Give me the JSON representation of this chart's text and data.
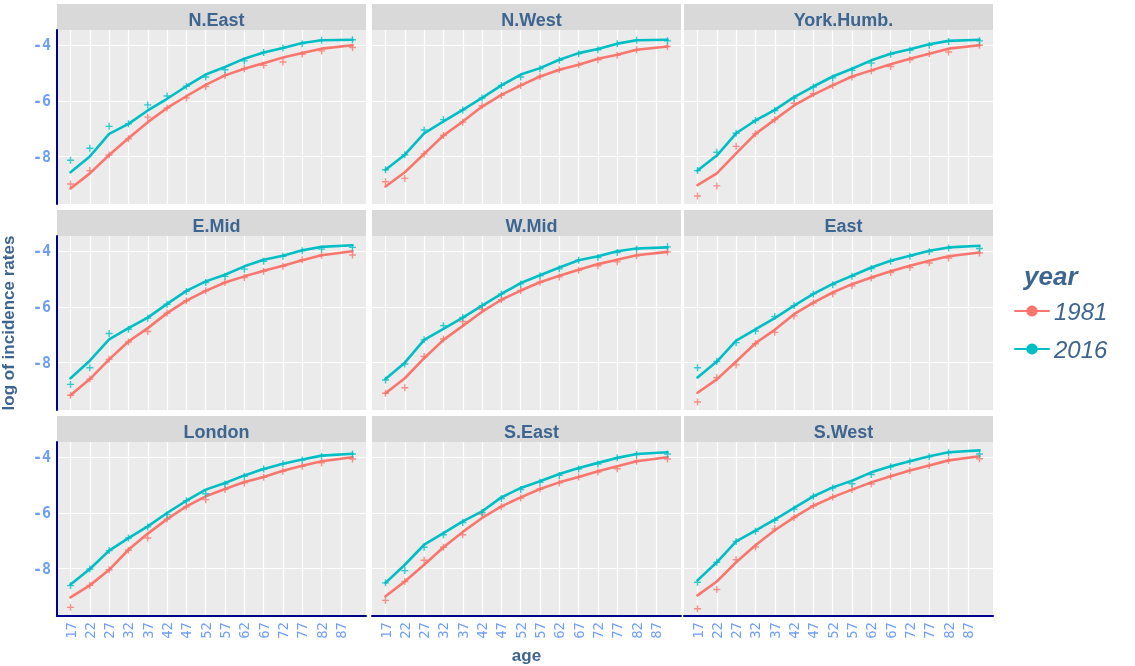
{
  "chart_data": [
    {
      "type": "line",
      "title": "N.East",
      "x": [
        17,
        22,
        27,
        32,
        37,
        42,
        47,
        52,
        57,
        62,
        67,
        72,
        77,
        82,
        90
      ],
      "xlim": [
        13.5,
        93.5
      ],
      "xticks": [
        17,
        22,
        27,
        32,
        37,
        42,
        47,
        52,
        57,
        62,
        67,
        72,
        77,
        82,
        87
      ],
      "ylim": [
        -9.7,
        -3.45
      ],
      "yticks": [
        -8,
        -6,
        -4
      ],
      "grid": true,
      "tick_labels": "y",
      "series": [
        {
          "color": "#f8766d",
          "marker": "none",
          "values": [
            -9.14,
            -8.6,
            -7.94,
            -7.34,
            -6.76,
            -6.25,
            -5.83,
            -5.42,
            -5.08,
            -4.84,
            -4.64,
            -4.44,
            -4.28,
            -4.12,
            -4.0
          ]
        },
        {
          "color": "#00bfc4",
          "marker": "none",
          "values": [
            -8.56,
            -7.99,
            -7.18,
            -6.82,
            -6.34,
            -5.92,
            -5.47,
            -5.05,
            -4.78,
            -4.48,
            -4.26,
            -4.1,
            -3.92,
            -3.82,
            -3.8
          ]
        },
        {
          "type": "scatter",
          "color": "#f8766d",
          "marker": "cross",
          "values": [
            -8.98,
            -8.5,
            -7.94,
            -7.36,
            -6.58,
            -6.25,
            -5.89,
            -5.48,
            -5.08,
            -4.84,
            -4.72,
            -4.6,
            -4.32,
            -4.2,
            -4.08
          ]
        },
        {
          "type": "scatter",
          "color": "#00bfc4",
          "marker": "cross",
          "values": [
            -8.13,
            -7.7,
            -6.91,
            -6.82,
            -6.14,
            -5.82,
            -5.47,
            -5.14,
            -4.88,
            -4.56,
            -4.26,
            -4.1,
            -3.94,
            -3.82,
            -3.8
          ]
        }
      ]
    },
    {
      "type": "line",
      "title": "N.West",
      "x": [
        17,
        22,
        27,
        32,
        37,
        42,
        47,
        52,
        57,
        62,
        67,
        72,
        77,
        82,
        90
      ],
      "xlim": [
        13.5,
        93.5
      ],
      "xticks": [
        17,
        22,
        27,
        32,
        37,
        42,
        47,
        52,
        57,
        62,
        67,
        72,
        77,
        82,
        87
      ],
      "ylim": [
        -9.7,
        -3.45
      ],
      "yticks": [
        -8,
        -6,
        -4
      ],
      "grid": true,
      "tick_labels": false,
      "series": [
        {
          "color": "#f8766d",
          "marker": "none",
          "values": [
            -9.07,
            -8.56,
            -7.9,
            -7.24,
            -6.74,
            -6.2,
            -5.78,
            -5.44,
            -5.12,
            -4.88,
            -4.7,
            -4.48,
            -4.34,
            -4.16,
            -4.04
          ]
        },
        {
          "color": "#00bfc4",
          "marker": "none",
          "values": [
            -8.47,
            -7.93,
            -7.16,
            -6.73,
            -6.32,
            -5.89,
            -5.44,
            -5.05,
            -4.82,
            -4.52,
            -4.28,
            -4.13,
            -3.94,
            -3.82,
            -3.8
          ]
        },
        {
          "type": "scatter",
          "color": "#f8766d",
          "marker": "cross",
          "values": [
            -8.9,
            -8.78,
            -7.9,
            -7.24,
            -6.76,
            -6.17,
            -5.8,
            -5.44,
            -5.12,
            -4.88,
            -4.7,
            -4.52,
            -4.36,
            -4.16,
            -4.04
          ]
        },
        {
          "type": "scatter",
          "color": "#00bfc4",
          "marker": "cross",
          "values": [
            -8.47,
            -7.93,
            -7.04,
            -6.67,
            -6.32,
            -5.89,
            -5.44,
            -5.14,
            -4.84,
            -4.54,
            -4.3,
            -4.16,
            -3.94,
            -3.82,
            -3.84
          ]
        }
      ]
    },
    {
      "type": "line",
      "title": "York.Humb.",
      "x": [
        17,
        22,
        27,
        32,
        37,
        42,
        47,
        52,
        57,
        62,
        67,
        72,
        77,
        82,
        90
      ],
      "xlim": [
        13.5,
        93.5
      ],
      "xticks": [
        17,
        22,
        27,
        32,
        37,
        42,
        47,
        52,
        57,
        62,
        67,
        72,
        77,
        82,
        87
      ],
      "ylim": [
        -9.7,
        -3.45
      ],
      "yticks": [
        -8,
        -6,
        -4
      ],
      "grid": true,
      "tick_labels": false,
      "series": [
        {
          "color": "#f8766d",
          "marker": "none",
          "values": [
            -9.02,
            -8.6,
            -7.88,
            -7.18,
            -6.67,
            -6.16,
            -5.77,
            -5.44,
            -5.12,
            -4.9,
            -4.68,
            -4.48,
            -4.3,
            -4.12,
            -4.0
          ]
        },
        {
          "color": "#00bfc4",
          "marker": "none",
          "values": [
            -8.5,
            -7.96,
            -7.16,
            -6.7,
            -6.32,
            -5.86,
            -5.48,
            -5.12,
            -4.84,
            -4.54,
            -4.3,
            -4.14,
            -3.96,
            -3.84,
            -3.8
          ]
        },
        {
          "type": "scatter",
          "color": "#f8766d",
          "marker": "cross",
          "values": [
            -9.41,
            -9.05,
            -7.63,
            -7.18,
            -6.67,
            -6.08,
            -5.74,
            -5.44,
            -5.14,
            -4.92,
            -4.76,
            -4.52,
            -4.3,
            -4.24,
            -4.0
          ]
        },
        {
          "type": "scatter",
          "color": "#00bfc4",
          "marker": "cross",
          "values": [
            -8.5,
            -7.84,
            -7.16,
            -6.7,
            -6.34,
            -5.9,
            -5.5,
            -5.17,
            -4.9,
            -4.64,
            -4.32,
            -4.18,
            -4.0,
            -3.86,
            -3.84
          ]
        }
      ]
    },
    {
      "type": "line",
      "title": "E.Mid",
      "ylabel": "log of incidence rates",
      "x": [
        17,
        22,
        27,
        32,
        37,
        42,
        47,
        52,
        57,
        62,
        67,
        72,
        77,
        82,
        90
      ],
      "xlim": [
        13.5,
        93.5
      ],
      "xticks": [
        17,
        22,
        27,
        32,
        37,
        42,
        47,
        52,
        57,
        62,
        67,
        72,
        77,
        82,
        87
      ],
      "ylim": [
        -9.7,
        -3.45
      ],
      "yticks": [
        -8,
        -6,
        -4
      ],
      "grid": true,
      "tick_labels": "y",
      "series": [
        {
          "color": "#f8766d",
          "marker": "none",
          "values": [
            -9.17,
            -8.59,
            -7.88,
            -7.24,
            -6.76,
            -6.22,
            -5.77,
            -5.42,
            -5.12,
            -4.9,
            -4.7,
            -4.52,
            -4.32,
            -4.14,
            -4.0
          ]
        },
        {
          "color": "#00bfc4",
          "marker": "none",
          "values": [
            -8.56,
            -7.93,
            -7.16,
            -6.76,
            -6.38,
            -5.89,
            -5.42,
            -5.08,
            -4.84,
            -4.54,
            -4.3,
            -4.16,
            -3.96,
            -3.84,
            -3.78
          ]
        },
        {
          "type": "scatter",
          "color": "#f8766d",
          "marker": "cross",
          "values": [
            -9.17,
            -8.59,
            -7.88,
            -7.26,
            -6.88,
            -6.22,
            -5.78,
            -5.42,
            -5.12,
            -4.94,
            -4.72,
            -4.54,
            -4.3,
            -4.14,
            -4.13
          ]
        },
        {
          "type": "scatter",
          "color": "#00bfc4",
          "marker": "cross",
          "values": [
            -8.78,
            -8.18,
            -6.95,
            -6.8,
            -6.4,
            -5.9,
            -5.44,
            -5.12,
            -4.9,
            -4.64,
            -4.36,
            -4.18,
            -3.98,
            -3.92,
            -3.86
          ]
        }
      ]
    },
    {
      "type": "line",
      "title": "W.Mid",
      "x": [
        17,
        22,
        27,
        32,
        37,
        42,
        47,
        52,
        57,
        62,
        67,
        72,
        77,
        82,
        90
      ],
      "xlim": [
        13.5,
        93.5
      ],
      "xticks": [
        17,
        22,
        27,
        32,
        37,
        42,
        47,
        52,
        57,
        62,
        67,
        72,
        77,
        82,
        87
      ],
      "ylim": [
        -9.7,
        -3.45
      ],
      "yticks": [
        -8,
        -6,
        -4
      ],
      "grid": true,
      "tick_labels": false,
      "series": [
        {
          "color": "#f8766d",
          "marker": "none",
          "values": [
            -9.1,
            -8.56,
            -7.84,
            -7.18,
            -6.68,
            -6.17,
            -5.74,
            -5.41,
            -5.11,
            -4.88,
            -4.66,
            -4.46,
            -4.3,
            -4.14,
            -4.02
          ]
        },
        {
          "color": "#00bfc4",
          "marker": "none",
          "values": [
            -8.59,
            -8.0,
            -7.18,
            -6.79,
            -6.38,
            -5.95,
            -5.53,
            -5.14,
            -4.86,
            -4.58,
            -4.32,
            -4.18,
            -4.0,
            -3.9,
            -3.86
          ]
        },
        {
          "type": "scatter",
          "color": "#f8766d",
          "marker": "cross",
          "values": [
            -9.1,
            -8.9,
            -7.78,
            -7.15,
            -6.52,
            -6.08,
            -5.74,
            -5.41,
            -5.11,
            -4.92,
            -4.68,
            -4.52,
            -4.38,
            -4.16,
            -4.02
          ]
        },
        {
          "type": "scatter",
          "color": "#00bfc4",
          "marker": "cross",
          "values": [
            -8.62,
            -8.05,
            -7.18,
            -6.67,
            -6.38,
            -5.95,
            -5.53,
            -5.17,
            -4.88,
            -4.63,
            -4.32,
            -4.22,
            -4.04,
            -3.92,
            -3.84
          ]
        }
      ]
    },
    {
      "type": "line",
      "title": "East",
      "legend": "right",
      "legend_title": "year",
      "x": [
        17,
        22,
        27,
        32,
        37,
        42,
        47,
        52,
        57,
        62,
        67,
        72,
        77,
        82,
        90
      ],
      "xlim": [
        13.5,
        93.5
      ],
      "xticks": [
        17,
        22,
        27,
        32,
        37,
        42,
        47,
        52,
        57,
        62,
        67,
        72,
        77,
        82,
        87
      ],
      "ylim": [
        -9.7,
        -3.45
      ],
      "yticks": [
        -8,
        -6,
        -4
      ],
      "grid": true,
      "tick_labels": false,
      "series": [
        {
          "name": "1981",
          "color": "#f8766d",
          "marker": "none",
          "values": [
            -9.08,
            -8.6,
            -7.96,
            -7.3,
            -6.82,
            -6.26,
            -5.84,
            -5.48,
            -5.18,
            -4.94,
            -4.72,
            -4.52,
            -4.34,
            -4.18,
            -4.04
          ]
        },
        {
          "name": "2016",
          "color": "#00bfc4",
          "marker": "none",
          "values": [
            -8.53,
            -7.96,
            -7.21,
            -6.8,
            -6.4,
            -5.95,
            -5.53,
            -5.17,
            -4.88,
            -4.58,
            -4.34,
            -4.16,
            -3.98,
            -3.86,
            -3.8
          ]
        },
        {
          "type": "scatter",
          "color": "#f8766d",
          "marker": "cross",
          "values": [
            -9.41,
            -8.54,
            -8.08,
            -7.32,
            -6.91,
            -6.32,
            -5.86,
            -5.53,
            -5.24,
            -4.96,
            -4.76,
            -4.58,
            -4.42,
            -4.24,
            -4.06
          ]
        },
        {
          "type": "scatter",
          "color": "#00bfc4",
          "marker": "cross",
          "values": [
            -8.18,
            -7.96,
            -7.28,
            -6.86,
            -6.34,
            -5.95,
            -5.53,
            -5.2,
            -4.9,
            -4.62,
            -4.36,
            -4.18,
            -4.02,
            -3.88,
            -3.9
          ]
        }
      ]
    },
    {
      "type": "line",
      "title": "London",
      "x": [
        17,
        22,
        27,
        32,
        37,
        42,
        47,
        52,
        57,
        62,
        67,
        72,
        77,
        82,
        90
      ],
      "xlim": [
        13.5,
        93.5
      ],
      "xticks": [
        17,
        22,
        27,
        32,
        37,
        42,
        47,
        52,
        57,
        62,
        67,
        72,
        77,
        82,
        87
      ],
      "ylim": [
        -9.7,
        -3.45
      ],
      "yticks": [
        -8,
        -6,
        -4
      ],
      "grid": true,
      "series": [
        {
          "color": "#f8766d",
          "marker": "none",
          "values": [
            -9.03,
            -8.6,
            -8.04,
            -7.32,
            -6.74,
            -6.22,
            -5.76,
            -5.4,
            -5.14,
            -4.89,
            -4.71,
            -4.48,
            -4.3,
            -4.14,
            -4.0
          ]
        },
        {
          "color": "#00bfc4",
          "marker": "none",
          "values": [
            -8.57,
            -8.01,
            -7.35,
            -6.9,
            -6.48,
            -6.0,
            -5.56,
            -5.16,
            -4.92,
            -4.65,
            -4.42,
            -4.23,
            -4.08,
            -3.94,
            -3.87
          ]
        },
        {
          "type": "scatter",
          "color": "#f8766d",
          "marker": "cross",
          "values": [
            -9.39,
            -8.6,
            -8.04,
            -7.34,
            -6.9,
            -6.22,
            -5.78,
            -5.52,
            -5.16,
            -4.92,
            -4.72,
            -4.5,
            -4.32,
            -4.2,
            -4.06
          ]
        },
        {
          "type": "scatter",
          "color": "#00bfc4",
          "marker": "cross",
          "values": [
            -8.61,
            -8.01,
            -7.35,
            -6.9,
            -6.5,
            -6.06,
            -5.56,
            -5.31,
            -4.96,
            -4.68,
            -4.42,
            -4.23,
            -4.1,
            -3.96,
            -3.88
          ]
        }
      ]
    },
    {
      "type": "line",
      "title": "S.East",
      "xlabel": "age",
      "x": [
        17,
        22,
        27,
        32,
        37,
        42,
        47,
        52,
        57,
        62,
        67,
        72,
        77,
        82,
        90
      ],
      "xlim": [
        13.5,
        93.5
      ],
      "xticks": [
        17,
        22,
        27,
        32,
        37,
        42,
        47,
        52,
        57,
        62,
        67,
        72,
        77,
        82,
        87
      ],
      "ylim": [
        -9.7,
        -3.45
      ],
      "yticks": [
        -8,
        -6,
        -4
      ],
      "grid": true,
      "tick_labels": "x",
      "series": [
        {
          "color": "#f8766d",
          "marker": "none",
          "values": [
            -8.99,
            -8.46,
            -7.86,
            -7.23,
            -6.68,
            -6.18,
            -5.76,
            -5.44,
            -5.14,
            -4.9,
            -4.71,
            -4.5,
            -4.32,
            -4.14,
            -4.0
          ]
        },
        {
          "color": "#00bfc4",
          "marker": "none",
          "values": [
            -8.51,
            -7.86,
            -7.14,
            -6.72,
            -6.3,
            -5.94,
            -5.44,
            -5.1,
            -4.86,
            -4.6,
            -4.38,
            -4.2,
            -4.02,
            -3.88,
            -3.82
          ]
        },
        {
          "type": "scatter",
          "color": "#f8766d",
          "marker": "cross",
          "values": [
            -9.14,
            -8.46,
            -7.7,
            -7.23,
            -6.78,
            -6.04,
            -5.78,
            -5.46,
            -5.14,
            -4.92,
            -4.71,
            -4.53,
            -4.41,
            -4.14,
            -4.06
          ]
        },
        {
          "type": "scatter",
          "color": "#00bfc4",
          "marker": "cross",
          "values": [
            -8.51,
            -8.07,
            -7.23,
            -6.78,
            -6.34,
            -5.98,
            -5.48,
            -5.16,
            -4.9,
            -4.65,
            -4.42,
            -4.24,
            -4.02,
            -3.9,
            -3.88
          ]
        }
      ]
    },
    {
      "type": "line",
      "title": "S.West",
      "x": [
        17,
        22,
        27,
        32,
        37,
        42,
        47,
        52,
        57,
        62,
        67,
        72,
        77,
        82,
        90
      ],
      "xlim": [
        13.5,
        93.5
      ],
      "xticks": [
        17,
        22,
        27,
        32,
        37,
        42,
        47,
        52,
        57,
        62,
        67,
        72,
        77,
        82,
        87
      ],
      "ylim": [
        -9.7,
        -3.45
      ],
      "yticks": [
        -8,
        -6,
        -4
      ],
      "grid": true,
      "tick_labels": "x",
      "series": [
        {
          "color": "#f8766d",
          "marker": "none",
          "values": [
            -8.96,
            -8.46,
            -7.77,
            -7.16,
            -6.62,
            -6.16,
            -5.74,
            -5.43,
            -5.16,
            -4.9,
            -4.68,
            -4.47,
            -4.29,
            -4.11,
            -3.96
          ]
        },
        {
          "color": "#00bfc4",
          "marker": "none",
          "values": [
            -8.42,
            -7.77,
            -7.02,
            -6.63,
            -6.24,
            -5.82,
            -5.4,
            -5.08,
            -4.84,
            -4.54,
            -4.32,
            -4.14,
            -3.96,
            -3.82,
            -3.75
          ]
        },
        {
          "type": "scatter",
          "color": "#f8766d",
          "marker": "cross",
          "values": [
            -9.44,
            -8.75,
            -7.68,
            -7.22,
            -6.57,
            -6.16,
            -5.74,
            -5.43,
            -5.16,
            -4.96,
            -4.68,
            -4.47,
            -4.29,
            -4.11,
            -4.05
          ]
        },
        {
          "type": "scatter",
          "color": "#00bfc4",
          "marker": "cross",
          "values": [
            -8.49,
            -7.77,
            -7.02,
            -6.66,
            -6.26,
            -5.86,
            -5.4,
            -5.1,
            -4.95,
            -4.62,
            -4.34,
            -4.14,
            -3.98,
            -3.84,
            -3.88
          ]
        }
      ]
    }
  ]
}
